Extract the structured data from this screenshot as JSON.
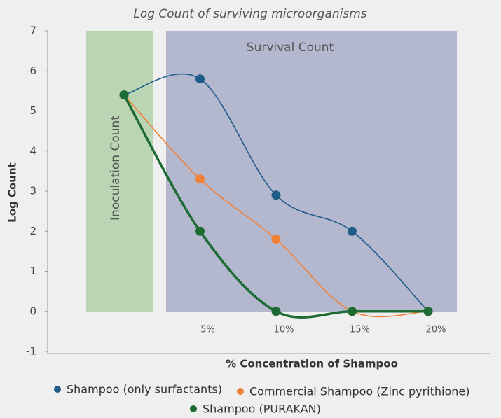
{
  "chart_data": {
    "type": "line",
    "title": "Log Count of surviving microorganisms",
    "x_label": "% Concentration of Shampoo",
    "y_label": "Log Count",
    "annotations": [
      "Inoculation Count",
      "Survival Count"
    ],
    "categories": [
      null,
      "5%",
      "10%",
      "15%",
      "20%"
    ],
    "series": [
      {
        "name": "Shampoo (only surfactants)",
        "color": "#1f5c87",
        "values": [
          5.4,
          5.8,
          2.9,
          2.0,
          0
        ]
      },
      {
        "name": "Commercial Shampoo (Zinc pyrithione)",
        "color": "#f08036",
        "values": [
          5.4,
          3.3,
          1.8,
          0,
          0
        ]
      },
      {
        "name": "Shampoo (PURAKAN)",
        "color": "#1c6b33",
        "values": [
          5.4,
          2.0,
          0,
          0,
          0
        ]
      }
    ],
    "ylim": [
      -1,
      7
    ],
    "yticks": [
      -1,
      0,
      1,
      2,
      3,
      4,
      5,
      6,
      7
    ],
    "grid": false
  }
}
